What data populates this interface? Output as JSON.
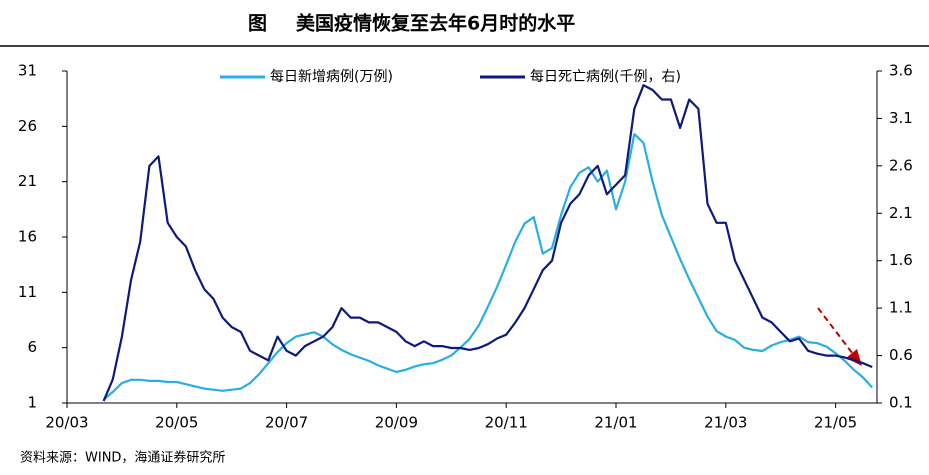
{
  "chart_data": {
    "type": "line",
    "figure_label": "图",
    "title": "美国疫情恢复至去年6月时的水平",
    "source": "资料来源：WIND，海通证券研究所",
    "categories": [
      "20/03",
      null,
      null,
      null,
      null,
      null,
      null,
      null,
      null,
      null,
      null,
      null,
      "20/05",
      null,
      null,
      null,
      null,
      null,
      null,
      null,
      null,
      null,
      null,
      null,
      "20/07",
      null,
      null,
      null,
      null,
      null,
      null,
      null,
      null,
      null,
      null,
      null,
      "20/09",
      null,
      null,
      null,
      null,
      null,
      null,
      null,
      null,
      null,
      null,
      null,
      "20/11",
      null,
      null,
      null,
      null,
      null,
      null,
      null,
      null,
      null,
      null,
      null,
      "21/01",
      null,
      null,
      null,
      null,
      null,
      null,
      null,
      null,
      null,
      null,
      null,
      "21/03",
      null,
      null,
      null,
      null,
      null,
      null,
      null,
      null,
      null,
      null,
      null,
      "21/05",
      null,
      null,
      null,
      null
    ],
    "series": [
      {
        "name": "每日新增病例(万例)",
        "color": "#29aee3",
        "axis": "y",
        "values": [
          null,
          null,
          null,
          null,
          1.3,
          2.0,
          2.8,
          3.1,
          3.1,
          3.0,
          3.0,
          2.9,
          2.9,
          2.7,
          2.5,
          2.3,
          2.2,
          2.1,
          2.2,
          2.3,
          2.8,
          3.6,
          4.6,
          5.6,
          6.4,
          7.0,
          7.2,
          7.4,
          7.0,
          6.3,
          5.8,
          5.4,
          5.1,
          4.8,
          4.4,
          4.1,
          3.8,
          4.0,
          4.3,
          4.5,
          4.6,
          4.9,
          5.3,
          6.0,
          6.8,
          8.0,
          9.7,
          11.5,
          13.5,
          15.6,
          17.2,
          17.8,
          14.5,
          15.0,
          18.0,
          20.5,
          21.8,
          22.3,
          21.0,
          22.0,
          18.5,
          21.0,
          25.3,
          24.5,
          21.0,
          18.0,
          16.0,
          14.0,
          12.2,
          10.5,
          8.8,
          7.5,
          7.0,
          6.7,
          6.0,
          5.8,
          5.7,
          6.2,
          6.5,
          6.7,
          7.0,
          6.5,
          6.4,
          6.1,
          5.5,
          4.8,
          4.0,
          3.3,
          2.4
        ]
      },
      {
        "name": "每日死亡病例(千例，右)",
        "color": "#0c1a7a",
        "axis": "y2",
        "values": [
          null,
          null,
          null,
          null,
          0.12,
          0.35,
          0.8,
          1.4,
          1.8,
          2.6,
          2.7,
          2.0,
          1.85,
          1.75,
          1.5,
          1.3,
          1.2,
          1.0,
          0.9,
          0.85,
          0.65,
          0.6,
          0.55,
          0.8,
          0.65,
          0.6,
          0.7,
          0.75,
          0.8,
          0.9,
          1.1,
          1.0,
          1.0,
          0.95,
          0.95,
          0.9,
          0.85,
          0.75,
          0.7,
          0.75,
          0.7,
          0.7,
          0.68,
          0.68,
          0.66,
          0.68,
          0.72,
          0.78,
          0.82,
          0.95,
          1.1,
          1.3,
          1.5,
          1.6,
          2.0,
          2.2,
          2.3,
          2.5,
          2.6,
          2.3,
          2.4,
          2.5,
          3.2,
          3.45,
          3.4,
          3.3,
          3.3,
          3.0,
          3.3,
          3.2,
          2.2,
          2.0,
          2.0,
          1.6,
          1.4,
          1.2,
          1.0,
          0.95,
          0.85,
          0.75,
          0.78,
          0.65,
          0.62,
          0.6,
          0.6,
          0.58,
          0.55,
          0.52,
          0.48
        ]
      }
    ],
    "ylim": [
      1,
      31
    ],
    "yticks": [
      1,
      6,
      11,
      16,
      21,
      26,
      31
    ],
    "y2lim": [
      0.1,
      3.6
    ],
    "y2ticks": [
      0.1,
      0.6,
      1.1,
      1.6,
      2.1,
      2.6,
      3.1,
      3.6
    ]
  }
}
